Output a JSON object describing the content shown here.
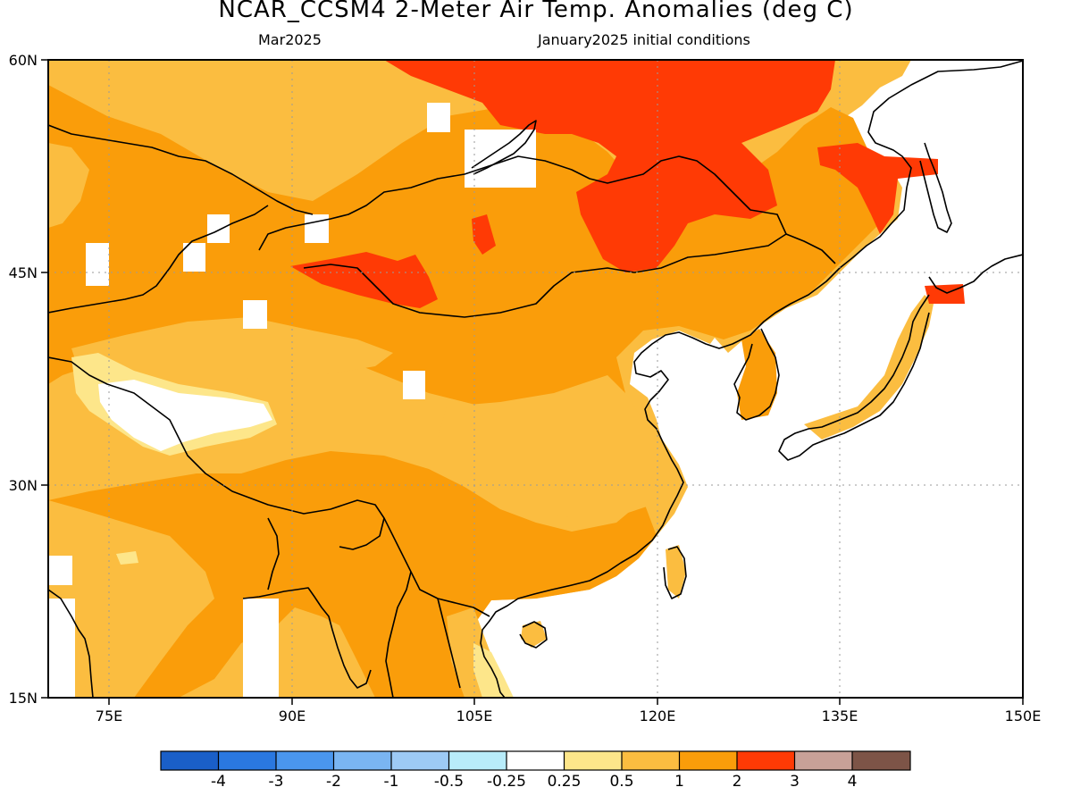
{
  "header": {
    "title": "NCAR_CCSM4 2-Meter Air Temp. Anomalies (deg C)",
    "valid_month": "Mar2025",
    "init": "January2025 initial conditions"
  },
  "axes": {
    "lat_labels": [
      "60N",
      "45N",
      "30N",
      "15N"
    ],
    "lon_labels": [
      "75E",
      "90E",
      "105E",
      "120E",
      "135E",
      "150E"
    ],
    "lat_values": [
      60,
      45,
      30,
      15
    ],
    "lon_values": [
      75,
      90,
      105,
      120,
      135,
      150
    ],
    "extent": {
      "lon_min": 70,
      "lon_max": 150,
      "lat_min": 15,
      "lat_max": 60
    }
  },
  "colorbar": {
    "colors": [
      "#1a5fc8",
      "#2a78e0",
      "#4a96ee",
      "#7ab5f2",
      "#9dcaf5",
      "#b8ecfa",
      "#ffffff",
      "#fde68a",
      "#fbbd40",
      "#fa9d0a",
      "#ff3a05",
      "#c8a198",
      "#7d5447"
    ],
    "labels": [
      "-4",
      "-3",
      "-2",
      "-1",
      "-0.5",
      "-0.25",
      "0.25",
      "0.5",
      "1",
      "2",
      "3",
      "4"
    ]
  },
  "colors": {
    "anom_2_3": "#fa9d0a",
    "anom_1_2": "#fbbd40",
    "anom_05_1": "#fde68a",
    "anom_3_4": "#ff3a05",
    "ocean": "#ffffff"
  }
}
